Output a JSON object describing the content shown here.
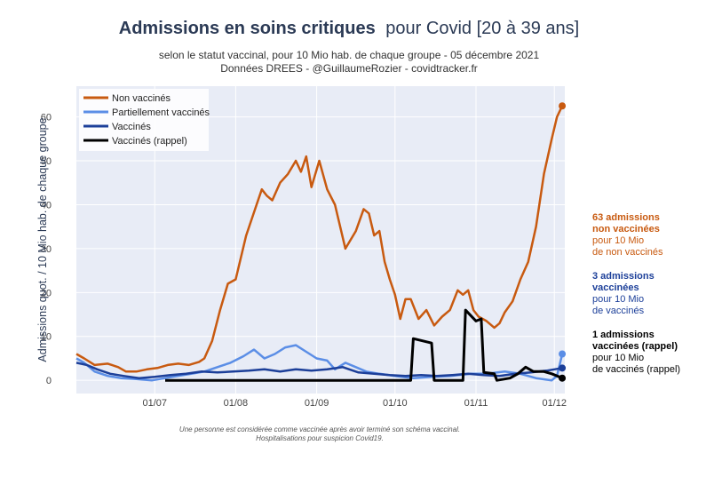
{
  "title": {
    "bold": "Admissions en soins critiques",
    "rest": "pour Covid [20 à 39 ans]"
  },
  "subtitle_line1": "selon le statut vaccinal, pour 10 Mio hab. de chaque groupe - 05 décembre 2021",
  "subtitle_line2": "Données DREES - @GuillaumeRozier - covidtracker.fr",
  "footnote_line1": "Une personne est considérée comme vaccinée après avoir terminé son schéma vaccinal.",
  "footnote_line2": "Hospitalisations pour suspicion Covid19.",
  "colors": {
    "non_vaccines": "#c85a10",
    "partiellement": "#5b8ee6",
    "vaccines": "#1c3f99",
    "rappel": "#000000",
    "plot_bg": "#e8ecf6",
    "grid": "#ffffff"
  },
  "annotations": [
    {
      "bold": [
        "63 admissions",
        "non vaccinées"
      ],
      "normal": [
        "pour 10 Mio",
        "de non vaccinés"
      ],
      "color": "#c85a10"
    },
    {
      "bold": [
        "3 admissions",
        "vaccinées"
      ],
      "normal": [
        "pour 10 Mio",
        "de vaccinés"
      ],
      "color": "#1c3f99"
    },
    {
      "bold": [
        "1 admissions",
        "vaccinées (rappel)"
      ],
      "normal": [
        "pour 10 Mio",
        "de vaccinés (rappel)"
      ],
      "color": "#000000"
    }
  ],
  "chart_data": {
    "type": "line",
    "title": "Admissions en soins critiques pour Covid [20 à 39 ans]",
    "xlabel": "",
    "ylabel": "Admissions quot. / 10 Mio hab. de chaque groupe",
    "xlim": [
      "2021-06-01",
      "2021-12-05"
    ],
    "ylim": [
      -3,
      67
    ],
    "yticks": [
      0,
      10,
      20,
      30,
      40,
      50,
      60
    ],
    "xticks": [
      {
        "date": "2021-07-01",
        "label": "01/07"
      },
      {
        "date": "2021-08-01",
        "label": "01/08"
      },
      {
        "date": "2021-09-01",
        "label": "01/09"
      },
      {
        "date": "2021-10-01",
        "label": "01/10"
      },
      {
        "date": "2021-11-01",
        "label": "01/11"
      },
      {
        "date": "2021-12-01",
        "label": "01/12"
      }
    ],
    "grid": true,
    "legend": "top-left",
    "series": [
      {
        "name": "Non vaccinés",
        "points": [
          [
            "2021-06-01",
            6
          ],
          [
            "2021-06-04",
            5
          ],
          [
            "2021-06-08",
            3.5
          ],
          [
            "2021-06-13",
            3.8
          ],
          [
            "2021-06-17",
            3
          ],
          [
            "2021-06-20",
            2
          ],
          [
            "2021-06-24",
            2
          ],
          [
            "2021-06-28",
            2.5
          ],
          [
            "2021-07-02",
            2.8
          ],
          [
            "2021-07-06",
            3.5
          ],
          [
            "2021-07-10",
            3.8
          ],
          [
            "2021-07-14",
            3.5
          ],
          [
            "2021-07-18",
            4.2
          ],
          [
            "2021-07-20",
            5
          ],
          [
            "2021-07-23",
            9
          ],
          [
            "2021-07-26",
            16
          ],
          [
            "2021-07-29",
            22
          ],
          [
            "2021-08-01",
            23
          ],
          [
            "2021-08-05",
            33
          ],
          [
            "2021-08-09",
            40
          ],
          [
            "2021-08-11",
            43.5
          ],
          [
            "2021-08-13",
            42
          ],
          [
            "2021-08-15",
            41
          ],
          [
            "2021-08-18",
            45
          ],
          [
            "2021-08-21",
            47
          ],
          [
            "2021-08-24",
            50
          ],
          [
            "2021-08-26",
            47.5
          ],
          [
            "2021-08-28",
            51
          ],
          [
            "2021-08-30",
            44
          ],
          [
            "2021-09-02",
            50
          ],
          [
            "2021-09-05",
            43.5
          ],
          [
            "2021-09-08",
            40
          ],
          [
            "2021-09-12",
            30
          ],
          [
            "2021-09-16",
            34
          ],
          [
            "2021-09-19",
            39
          ],
          [
            "2021-09-21",
            38
          ],
          [
            "2021-09-23",
            33
          ],
          [
            "2021-09-25",
            34
          ],
          [
            "2021-09-27",
            27
          ],
          [
            "2021-09-29",
            23
          ],
          [
            "2021-10-01",
            19.5
          ],
          [
            "2021-10-03",
            14
          ],
          [
            "2021-10-05",
            18.5
          ],
          [
            "2021-10-07",
            18.5
          ],
          [
            "2021-10-10",
            14
          ],
          [
            "2021-10-13",
            16
          ],
          [
            "2021-10-16",
            12.5
          ],
          [
            "2021-10-19",
            14.5
          ],
          [
            "2021-10-22",
            16
          ],
          [
            "2021-10-25",
            20.5
          ],
          [
            "2021-10-27",
            19.5
          ],
          [
            "2021-10-29",
            20.5
          ],
          [
            "2021-10-31",
            16
          ],
          [
            "2021-11-02",
            14.5
          ],
          [
            "2021-11-05",
            13.5
          ],
          [
            "2021-11-08",
            12
          ],
          [
            "2021-11-10",
            13
          ],
          [
            "2021-11-12",
            15.5
          ],
          [
            "2021-11-15",
            18
          ],
          [
            "2021-11-18",
            23
          ],
          [
            "2021-11-21",
            27
          ],
          [
            "2021-11-24",
            35
          ],
          [
            "2021-11-27",
            47
          ],
          [
            "2021-11-30",
            55
          ],
          [
            "2021-12-02",
            60
          ],
          [
            "2021-12-04",
            62.5
          ]
        ]
      },
      {
        "name": "Partiellement vaccinés",
        "points": [
          [
            "2021-06-01",
            5
          ],
          [
            "2021-06-04",
            4
          ],
          [
            "2021-06-08",
            2
          ],
          [
            "2021-06-13",
            1
          ],
          [
            "2021-06-18",
            0.5
          ],
          [
            "2021-06-24",
            0.3
          ],
          [
            "2021-06-30",
            0
          ],
          [
            "2021-07-05",
            0.5
          ],
          [
            "2021-07-10",
            1
          ],
          [
            "2021-07-15",
            1.5
          ],
          [
            "2021-07-20",
            2
          ],
          [
            "2021-07-25",
            3
          ],
          [
            "2021-07-30",
            4
          ],
          [
            "2021-08-04",
            5.5
          ],
          [
            "2021-08-08",
            7
          ],
          [
            "2021-08-12",
            5
          ],
          [
            "2021-08-16",
            6
          ],
          [
            "2021-08-20",
            7.5
          ],
          [
            "2021-08-24",
            8
          ],
          [
            "2021-08-28",
            6.5
          ],
          [
            "2021-09-01",
            5
          ],
          [
            "2021-09-05",
            4.5
          ],
          [
            "2021-09-08",
            2.5
          ],
          [
            "2021-09-12",
            4
          ],
          [
            "2021-09-16",
            3
          ],
          [
            "2021-09-20",
            2
          ],
          [
            "2021-09-25",
            1.5
          ],
          [
            "2021-10-01",
            1
          ],
          [
            "2021-10-08",
            0.5
          ],
          [
            "2021-10-15",
            0.8
          ],
          [
            "2021-10-22",
            1
          ],
          [
            "2021-10-30",
            1.5
          ],
          [
            "2021-11-05",
            1.5
          ],
          [
            "2021-11-12",
            2
          ],
          [
            "2021-11-18",
            1.5
          ],
          [
            "2021-11-24",
            0.5
          ],
          [
            "2021-11-30",
            0
          ],
          [
            "2021-12-02",
            1
          ],
          [
            "2021-12-04",
            6
          ]
        ]
      },
      {
        "name": "Vaccinés",
        "points": [
          [
            "2021-06-01",
            4
          ],
          [
            "2021-06-05",
            3.5
          ],
          [
            "2021-06-09",
            2.5
          ],
          [
            "2021-06-14",
            1.5
          ],
          [
            "2021-06-19",
            1
          ],
          [
            "2021-06-25",
            0.5
          ],
          [
            "2021-07-01",
            0.8
          ],
          [
            "2021-07-07",
            1.2
          ],
          [
            "2021-07-13",
            1.5
          ],
          [
            "2021-07-19",
            2
          ],
          [
            "2021-07-25",
            1.8
          ],
          [
            "2021-07-31",
            2
          ],
          [
            "2021-08-06",
            2.2
          ],
          [
            "2021-08-12",
            2.5
          ],
          [
            "2021-08-18",
            2
          ],
          [
            "2021-08-24",
            2.5
          ],
          [
            "2021-08-30",
            2.2
          ],
          [
            "2021-09-05",
            2.5
          ],
          [
            "2021-09-11",
            3
          ],
          [
            "2021-09-17",
            1.8
          ],
          [
            "2021-09-23",
            1.5
          ],
          [
            "2021-09-29",
            1.2
          ],
          [
            "2021-10-05",
            1
          ],
          [
            "2021-10-11",
            1.2
          ],
          [
            "2021-10-17",
            1
          ],
          [
            "2021-10-23",
            1.2
          ],
          [
            "2021-10-29",
            1.5
          ],
          [
            "2021-11-04",
            1.2
          ],
          [
            "2021-11-10",
            1
          ],
          [
            "2021-11-16",
            1.5
          ],
          [
            "2021-11-22",
            1.8
          ],
          [
            "2021-11-28",
            2.2
          ],
          [
            "2021-12-04",
            2.8
          ]
        ]
      },
      {
        "name": "Vaccinés (rappel)",
        "points": [
          [
            "2021-07-05",
            0
          ],
          [
            "2021-10-07",
            0
          ],
          [
            "2021-10-08",
            9.5
          ],
          [
            "2021-10-15",
            8.5
          ],
          [
            "2021-10-16",
            0
          ],
          [
            "2021-10-27",
            0
          ],
          [
            "2021-10-28",
            16
          ],
          [
            "2021-11-01",
            13.5
          ],
          [
            "2021-11-03",
            14
          ],
          [
            "2021-11-04",
            1.8
          ],
          [
            "2021-11-08",
            1.5
          ],
          [
            "2021-11-09",
            0
          ],
          [
            "2021-11-14",
            0.5
          ],
          [
            "2021-11-17",
            1.5
          ],
          [
            "2021-11-20",
            3
          ],
          [
            "2021-11-23",
            2
          ],
          [
            "2021-11-27",
            2
          ],
          [
            "2021-11-30",
            1.5
          ],
          [
            "2021-12-02",
            1
          ],
          [
            "2021-12-04",
            0.5
          ]
        ]
      }
    ]
  }
}
